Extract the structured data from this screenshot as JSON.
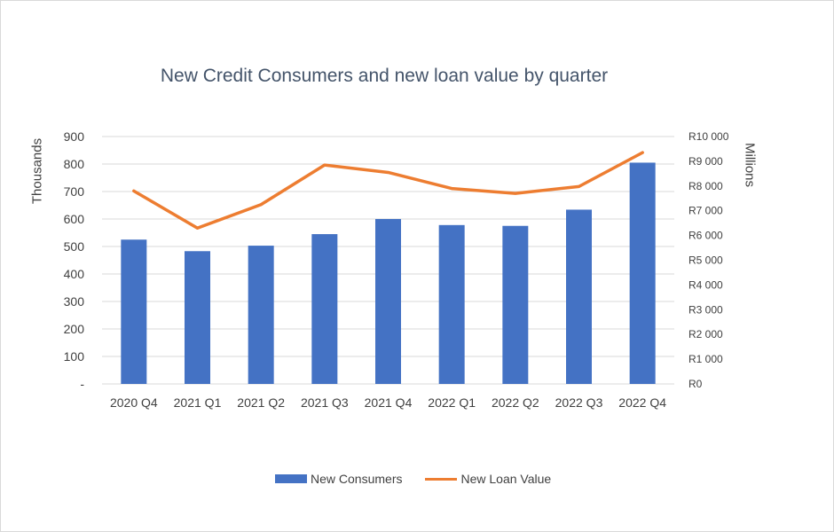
{
  "colors": {
    "bar": "#4472c4",
    "line": "#ed7d31",
    "grid": "#d9d9d9",
    "text": "#404040",
    "title": "#44546a"
  },
  "chart_data": {
    "type": "bar",
    "title": "New Credit Consumers and new loan value by quarter",
    "xlabel": "",
    "ylabel": "Thousands",
    "y2label": "Millions",
    "categories": [
      "2020 Q4",
      "2021 Q1",
      "2021 Q2",
      "2021 Q3",
      "2021 Q4",
      "2022 Q1",
      "2022 Q2",
      "2022 Q3",
      "2022 Q4"
    ],
    "series": [
      {
        "name": "New Consumers",
        "type": "bar",
        "axis": "left",
        "values": [
          525,
          483,
          503,
          545,
          600,
          578,
          575,
          634,
          805
        ]
      },
      {
        "name": "New Loan Value",
        "type": "line",
        "axis": "right",
        "values": [
          7800,
          6300,
          7250,
          8850,
          8550,
          7900,
          7700,
          7980,
          9350
        ]
      }
    ],
    "ylim": [
      0,
      900
    ],
    "y2lim": [
      0,
      10000
    ],
    "yticks": [
      "-",
      "100",
      "200",
      "300",
      "400",
      "500",
      "600",
      "700",
      "800",
      "900"
    ],
    "y2ticks": [
      "R0",
      "R1 000",
      "R2 000",
      "R3 000",
      "R4 000",
      "R5 000",
      "R6 000",
      "R7 000",
      "R8 000",
      "R9 000",
      "R10 000"
    ],
    "grid": true,
    "legend_position": "bottom"
  }
}
